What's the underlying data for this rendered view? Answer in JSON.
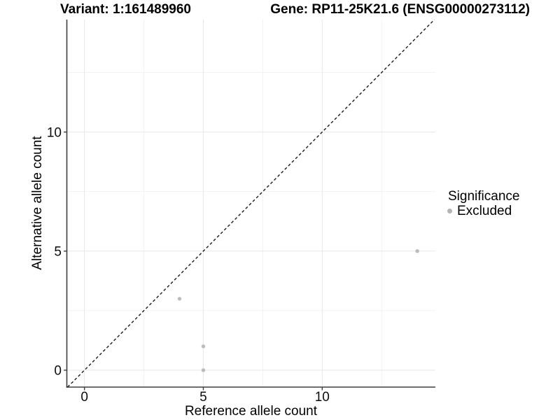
{
  "chart_data": {
    "type": "scatter",
    "title_left": "Variant: 1:161489960",
    "title_right": "Gene: RP11-25K21.6 (ENSG00000273112)",
    "xlabel": "Reference allele count",
    "ylabel": "Alternative allele count",
    "xlim": [
      -0.74,
      14.76
    ],
    "ylim": [
      -0.71,
      14.72
    ],
    "x_major_ticks": [
      0,
      5,
      10
    ],
    "y_major_ticks": [
      0,
      5,
      10
    ],
    "x_minor_ticks": [
      2.5,
      7.5,
      12.5
    ],
    "y_minor_ticks": [
      2.5,
      7.5,
      12.5
    ],
    "grid": true,
    "identity_line": {
      "style": "dashed",
      "slope": 1,
      "intercept": 0
    },
    "series": [
      {
        "name": "Excluded",
        "color": "#bcbcbc",
        "points": [
          {
            "x": 4,
            "y": 3
          },
          {
            "x": 5,
            "y": 1
          },
          {
            "x": 5,
            "y": 0
          },
          {
            "x": 14,
            "y": 5
          }
        ]
      }
    ],
    "legend": {
      "title": "Significance",
      "position": "right",
      "items": [
        {
          "label": "Excluded",
          "color": "#b3b3b3"
        }
      ]
    },
    "colors": {
      "point": "#bcbcbc",
      "grid_major": "#e7e7e7",
      "grid_minor": "#f2f2f2",
      "axis": "#3f3f3f",
      "dashed_line": "#1a1a1a",
      "text": "#0d0d0d"
    }
  }
}
